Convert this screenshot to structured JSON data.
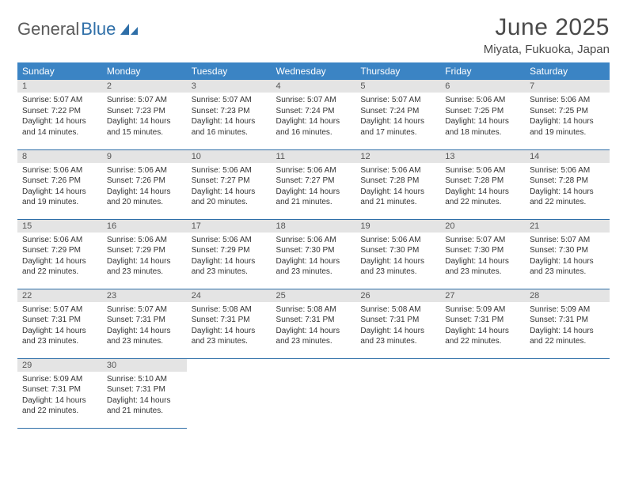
{
  "logo": {
    "text1": "General",
    "text2": "Blue"
  },
  "header": {
    "month_title": "June 2025",
    "location": "Miyata, Fukuoka, Japan"
  },
  "calendar": {
    "weekday_bg": "#3b84c4",
    "weekday_fg": "#ffffff",
    "daynum_bg": "#e4e4e4",
    "border_color": "#2f6fa8",
    "weekdays": [
      "Sunday",
      "Monday",
      "Tuesday",
      "Wednesday",
      "Thursday",
      "Friday",
      "Saturday"
    ],
    "start_offset": 0,
    "days": [
      {
        "n": "1",
        "sunrise": "5:07 AM",
        "sunset": "7:22 PM",
        "daylight": "14 hours and 14 minutes."
      },
      {
        "n": "2",
        "sunrise": "5:07 AM",
        "sunset": "7:23 PM",
        "daylight": "14 hours and 15 minutes."
      },
      {
        "n": "3",
        "sunrise": "5:07 AM",
        "sunset": "7:23 PM",
        "daylight": "14 hours and 16 minutes."
      },
      {
        "n": "4",
        "sunrise": "5:07 AM",
        "sunset": "7:24 PM",
        "daylight": "14 hours and 16 minutes."
      },
      {
        "n": "5",
        "sunrise": "5:07 AM",
        "sunset": "7:24 PM",
        "daylight": "14 hours and 17 minutes."
      },
      {
        "n": "6",
        "sunrise": "5:06 AM",
        "sunset": "7:25 PM",
        "daylight": "14 hours and 18 minutes."
      },
      {
        "n": "7",
        "sunrise": "5:06 AM",
        "sunset": "7:25 PM",
        "daylight": "14 hours and 19 minutes."
      },
      {
        "n": "8",
        "sunrise": "5:06 AM",
        "sunset": "7:26 PM",
        "daylight": "14 hours and 19 minutes."
      },
      {
        "n": "9",
        "sunrise": "5:06 AM",
        "sunset": "7:26 PM",
        "daylight": "14 hours and 20 minutes."
      },
      {
        "n": "10",
        "sunrise": "5:06 AM",
        "sunset": "7:27 PM",
        "daylight": "14 hours and 20 minutes."
      },
      {
        "n": "11",
        "sunrise": "5:06 AM",
        "sunset": "7:27 PM",
        "daylight": "14 hours and 21 minutes."
      },
      {
        "n": "12",
        "sunrise": "5:06 AM",
        "sunset": "7:28 PM",
        "daylight": "14 hours and 21 minutes."
      },
      {
        "n": "13",
        "sunrise": "5:06 AM",
        "sunset": "7:28 PM",
        "daylight": "14 hours and 22 minutes."
      },
      {
        "n": "14",
        "sunrise": "5:06 AM",
        "sunset": "7:28 PM",
        "daylight": "14 hours and 22 minutes."
      },
      {
        "n": "15",
        "sunrise": "5:06 AM",
        "sunset": "7:29 PM",
        "daylight": "14 hours and 22 minutes."
      },
      {
        "n": "16",
        "sunrise": "5:06 AM",
        "sunset": "7:29 PM",
        "daylight": "14 hours and 23 minutes."
      },
      {
        "n": "17",
        "sunrise": "5:06 AM",
        "sunset": "7:29 PM",
        "daylight": "14 hours and 23 minutes."
      },
      {
        "n": "18",
        "sunrise": "5:06 AM",
        "sunset": "7:30 PM",
        "daylight": "14 hours and 23 minutes."
      },
      {
        "n": "19",
        "sunrise": "5:06 AM",
        "sunset": "7:30 PM",
        "daylight": "14 hours and 23 minutes."
      },
      {
        "n": "20",
        "sunrise": "5:07 AM",
        "sunset": "7:30 PM",
        "daylight": "14 hours and 23 minutes."
      },
      {
        "n": "21",
        "sunrise": "5:07 AM",
        "sunset": "7:30 PM",
        "daylight": "14 hours and 23 minutes."
      },
      {
        "n": "22",
        "sunrise": "5:07 AM",
        "sunset": "7:31 PM",
        "daylight": "14 hours and 23 minutes."
      },
      {
        "n": "23",
        "sunrise": "5:07 AM",
        "sunset": "7:31 PM",
        "daylight": "14 hours and 23 minutes."
      },
      {
        "n": "24",
        "sunrise": "5:08 AM",
        "sunset": "7:31 PM",
        "daylight": "14 hours and 23 minutes."
      },
      {
        "n": "25",
        "sunrise": "5:08 AM",
        "sunset": "7:31 PM",
        "daylight": "14 hours and 23 minutes."
      },
      {
        "n": "26",
        "sunrise": "5:08 AM",
        "sunset": "7:31 PM",
        "daylight": "14 hours and 23 minutes."
      },
      {
        "n": "27",
        "sunrise": "5:09 AM",
        "sunset": "7:31 PM",
        "daylight": "14 hours and 22 minutes."
      },
      {
        "n": "28",
        "sunrise": "5:09 AM",
        "sunset": "7:31 PM",
        "daylight": "14 hours and 22 minutes."
      },
      {
        "n": "29",
        "sunrise": "5:09 AM",
        "sunset": "7:31 PM",
        "daylight": "14 hours and 22 minutes."
      },
      {
        "n": "30",
        "sunrise": "5:10 AM",
        "sunset": "7:31 PM",
        "daylight": "14 hours and 21 minutes."
      }
    ],
    "labels": {
      "sunrise": "Sunrise:",
      "sunset": "Sunset:",
      "daylight": "Daylight:"
    }
  }
}
